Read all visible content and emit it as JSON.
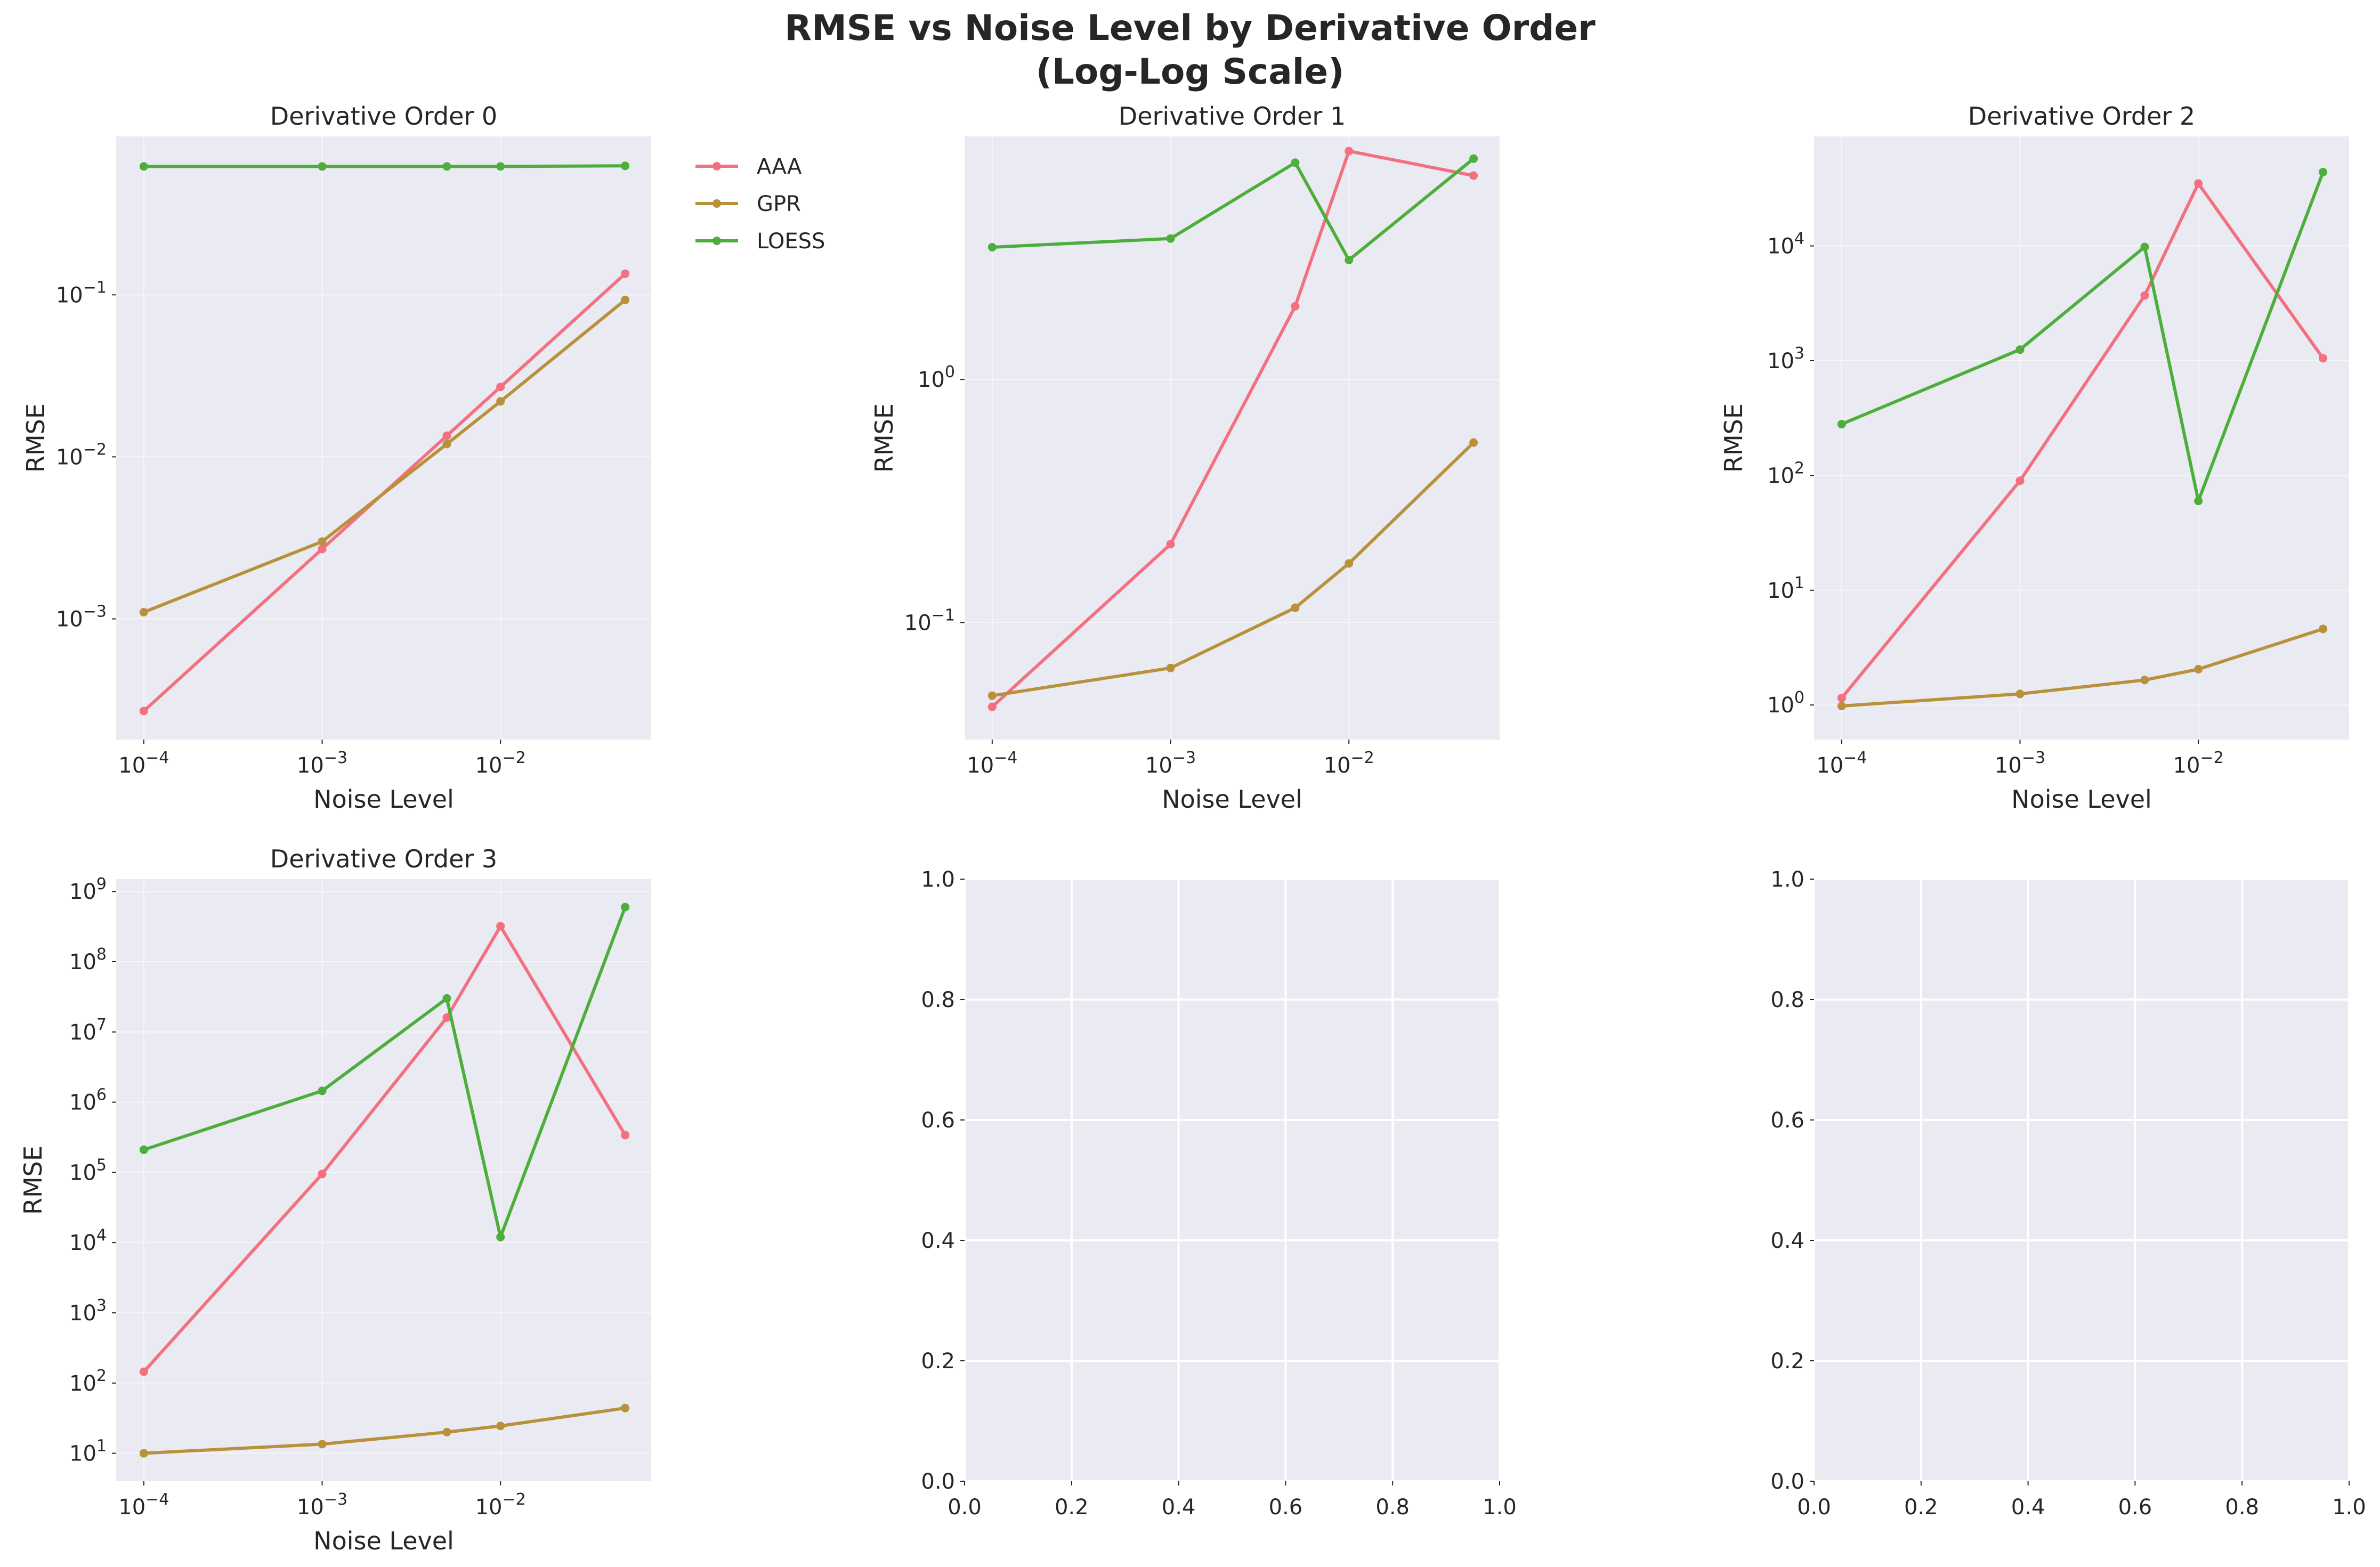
{
  "figure": {
    "title_line1": "RMSE vs Noise Level by Derivative Order",
    "title_line2": "(Log-Log Scale)"
  },
  "colors": {
    "background": "#eaeaf2",
    "grid": "#ffffff",
    "AAA": "#f2707f",
    "GPR": "#b8913a",
    "LOESS": "#4daf3b"
  },
  "legend": {
    "placement": "outside-right-of-first-panel",
    "entries": [
      "AAA",
      "GPR",
      "LOESS"
    ]
  },
  "chart_data": [
    {
      "type": "line",
      "title": "Derivative Order 0",
      "xlabel": "Noise Level",
      "ylabel": "RMSE",
      "xscale": "log",
      "yscale": "log",
      "xlim": [
        7e-05,
        0.07
      ],
      "ylim": [
        0.00018,
        0.95
      ],
      "xticks": [
        {
          "value": 0.0001,
          "base": "10",
          "exp": "−4"
        },
        {
          "value": 0.001,
          "base": "10",
          "exp": "−3"
        },
        {
          "value": 0.01,
          "base": "10",
          "exp": "−2"
        }
      ],
      "yticks": [
        {
          "value": 0.001,
          "base": "10",
          "exp": "−3"
        },
        {
          "value": 0.01,
          "base": "10",
          "exp": "−2"
        },
        {
          "value": 0.1,
          "base": "10",
          "exp": "−1"
        }
      ],
      "grid": true,
      "series": [
        {
          "name": "AAA",
          "x": [
            0.0001,
            0.001,
            0.005,
            0.01,
            0.05
          ],
          "y": [
            0.00027,
            0.0027,
            0.0135,
            0.027,
            0.135
          ]
        },
        {
          "name": "GPR",
          "x": [
            0.0001,
            0.001,
            0.005,
            0.01,
            0.05
          ],
          "y": [
            0.0011,
            0.003,
            0.012,
            0.022,
            0.093
          ]
        },
        {
          "name": "LOESS",
          "x": [
            0.0001,
            0.001,
            0.005,
            0.01,
            0.05
          ],
          "y": [
            0.62,
            0.62,
            0.62,
            0.62,
            0.625
          ]
        }
      ]
    },
    {
      "type": "line",
      "title": "Derivative Order 1",
      "xlabel": "Noise Level",
      "ylabel": "RMSE",
      "xscale": "log",
      "yscale": "log",
      "xlim": [
        7e-05,
        0.07
      ],
      "ylim": [
        0.033,
        10.0
      ],
      "xticks": [
        {
          "value": 0.0001,
          "base": "10",
          "exp": "−4"
        },
        {
          "value": 0.001,
          "base": "10",
          "exp": "−3"
        },
        {
          "value": 0.01,
          "base": "10",
          "exp": "−2"
        }
      ],
      "yticks": [
        {
          "value": 0.1,
          "base": "10",
          "exp": "−1"
        },
        {
          "value": 1,
          "base": "10",
          "exp": "0"
        }
      ],
      "grid": true,
      "series": [
        {
          "name": "AAA",
          "x": [
            0.0001,
            0.001,
            0.005,
            0.01,
            0.05
          ],
          "y": [
            0.045,
            0.21,
            2.0,
            8.7,
            6.9
          ]
        },
        {
          "name": "GPR",
          "x": [
            0.0001,
            0.001,
            0.005,
            0.01,
            0.05
          ],
          "y": [
            0.05,
            0.065,
            0.115,
            0.175,
            0.55
          ]
        },
        {
          "name": "LOESS",
          "x": [
            0.0001,
            0.001,
            0.005,
            0.01,
            0.05
          ],
          "y": [
            3.5,
            3.8,
            7.8,
            3.1,
            8.1
          ]
        }
      ]
    },
    {
      "type": "line",
      "title": "Derivative Order 2",
      "xlabel": "Noise Level",
      "ylabel": "RMSE",
      "xscale": "log",
      "yscale": "log",
      "xlim": [
        7e-05,
        0.07
      ],
      "ylim": [
        0.5,
        90000
      ],
      "xticks": [
        {
          "value": 0.0001,
          "base": "10",
          "exp": "−4"
        },
        {
          "value": 0.001,
          "base": "10",
          "exp": "−3"
        },
        {
          "value": 0.01,
          "base": "10",
          "exp": "−2"
        }
      ],
      "yticks": [
        {
          "value": 1,
          "base": "10",
          "exp": "0"
        },
        {
          "value": 10,
          "base": "10",
          "exp": "1"
        },
        {
          "value": 100,
          "base": "10",
          "exp": "2"
        },
        {
          "value": 1000,
          "base": "10",
          "exp": "3"
        },
        {
          "value": 10000,
          "base": "10",
          "exp": "4"
        }
      ],
      "grid": true,
      "series": [
        {
          "name": "AAA",
          "x": [
            0.0001,
            0.001,
            0.005,
            0.01,
            0.05
          ],
          "y": [
            1.15,
            90,
            3700,
            35000,
            1050
          ]
        },
        {
          "name": "GPR",
          "x": [
            0.0001,
            0.001,
            0.005,
            0.01,
            0.05
          ],
          "y": [
            0.98,
            1.25,
            1.65,
            2.05,
            4.6
          ]
        },
        {
          "name": "LOESS",
          "x": [
            0.0001,
            0.001,
            0.005,
            0.01,
            0.05
          ],
          "y": [
            280,
            1250,
            9800,
            60,
            44000
          ]
        }
      ]
    },
    {
      "type": "line",
      "title": "Derivative Order 3",
      "xlabel": "Noise Level",
      "ylabel": "RMSE",
      "xscale": "log",
      "yscale": "log",
      "xlim": [
        7e-05,
        0.07
      ],
      "ylim": [
        4,
        1500000000
      ],
      "xticks": [
        {
          "value": 0.0001,
          "base": "10",
          "exp": "−4"
        },
        {
          "value": 0.001,
          "base": "10",
          "exp": "−3"
        },
        {
          "value": 0.01,
          "base": "10",
          "exp": "−2"
        }
      ],
      "yticks": [
        {
          "value": 10,
          "base": "10",
          "exp": "1"
        },
        {
          "value": 100,
          "base": "10",
          "exp": "2"
        },
        {
          "value": 1000,
          "base": "10",
          "exp": "3"
        },
        {
          "value": 10000,
          "base": "10",
          "exp": "4"
        },
        {
          "value": 100000,
          "base": "10",
          "exp": "5"
        },
        {
          "value": 1000000,
          "base": "10",
          "exp": "6"
        },
        {
          "value": 10000000,
          "base": "10",
          "exp": "7"
        },
        {
          "value": 100000000,
          "base": "10",
          "exp": "8"
        },
        {
          "value": 1000000000,
          "base": "10",
          "exp": "9"
        }
      ],
      "grid": true,
      "series": [
        {
          "name": "AAA",
          "x": [
            0.0001,
            0.001,
            0.005,
            0.01,
            0.05
          ],
          "y": [
            145,
            95000,
            16000000,
            320000000,
            340000
          ]
        },
        {
          "name": "GPR",
          "x": [
            0.0001,
            0.001,
            0.005,
            0.01,
            0.05
          ],
          "y": [
            10,
            13.5,
            20,
            24.5,
            44
          ]
        },
        {
          "name": "LOESS",
          "x": [
            0.0001,
            0.001,
            0.005,
            0.01,
            0.05
          ],
          "y": [
            210000,
            1450000,
            30000000,
            12000,
            600000000
          ]
        }
      ]
    },
    {
      "type": "line",
      "title": "",
      "xscale": "linear",
      "yscale": "linear",
      "xlim": [
        0,
        1
      ],
      "ylim": [
        0,
        1
      ],
      "xticks": [
        {
          "value": 0,
          "label": "0.0"
        },
        {
          "value": 0.2,
          "label": "0.2"
        },
        {
          "value": 0.4,
          "label": "0.4"
        },
        {
          "value": 0.6,
          "label": "0.6"
        },
        {
          "value": 0.8,
          "label": "0.8"
        },
        {
          "value": 1,
          "label": "1.0"
        }
      ],
      "yticks": [
        {
          "value": 0,
          "label": "0.0"
        },
        {
          "value": 0.2,
          "label": "0.2"
        },
        {
          "value": 0.4,
          "label": "0.4"
        },
        {
          "value": 0.6,
          "label": "0.6"
        },
        {
          "value": 0.8,
          "label": "0.8"
        },
        {
          "value": 1,
          "label": "1.0"
        }
      ],
      "grid": true,
      "series": []
    },
    {
      "type": "line",
      "title": "",
      "xscale": "linear",
      "yscale": "linear",
      "xlim": [
        0,
        1
      ],
      "ylim": [
        0,
        1
      ],
      "xticks": [
        {
          "value": 0,
          "label": "0.0"
        },
        {
          "value": 0.2,
          "label": "0.2"
        },
        {
          "value": 0.4,
          "label": "0.4"
        },
        {
          "value": 0.6,
          "label": "0.6"
        },
        {
          "value": 0.8,
          "label": "0.8"
        },
        {
          "value": 1,
          "label": "1.0"
        }
      ],
      "yticks": [
        {
          "value": 0,
          "label": "0.0"
        },
        {
          "value": 0.2,
          "label": "0.2"
        },
        {
          "value": 0.4,
          "label": "0.4"
        },
        {
          "value": 0.6,
          "label": "0.6"
        },
        {
          "value": 0.8,
          "label": "0.8"
        },
        {
          "value": 1,
          "label": "1.0"
        }
      ],
      "grid": true,
      "series": []
    }
  ]
}
